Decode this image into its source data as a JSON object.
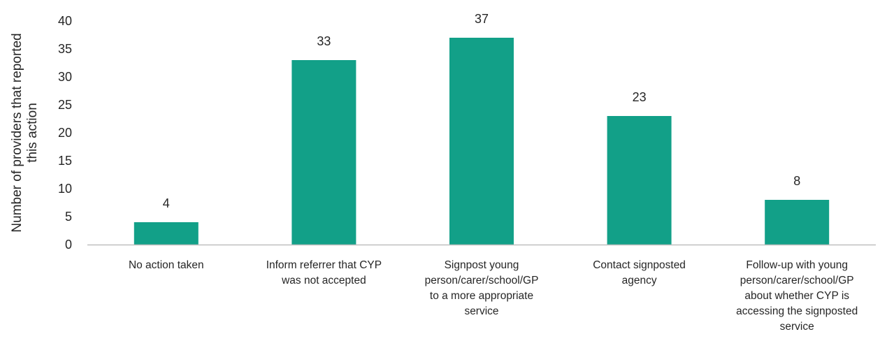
{
  "chart_data": {
    "type": "bar",
    "categories": [
      [
        "No action taken"
      ],
      [
        "Inform referrer that CYP",
        "was not accepted"
      ],
      [
        "Signpost young",
        "person/carer/school/GP",
        "to a more appropriate",
        "service"
      ],
      [
        "Contact signposted",
        "agency"
      ],
      [
        "Follow-up with young",
        "person/carer/school/GP",
        "about whether CYP is",
        "accessing the signposted",
        "service"
      ]
    ],
    "values": [
      4,
      33,
      37,
      23,
      8
    ],
    "ylabel": [
      "Number of providers that reported",
      "this action"
    ],
    "ylim": [
      0,
      40
    ],
    "yticks": [
      0,
      5,
      10,
      15,
      20,
      25,
      30,
      35,
      40
    ],
    "grid": false,
    "legend": "none",
    "bar_color": "#12A088",
    "axis_color": "#bfbfbf"
  }
}
